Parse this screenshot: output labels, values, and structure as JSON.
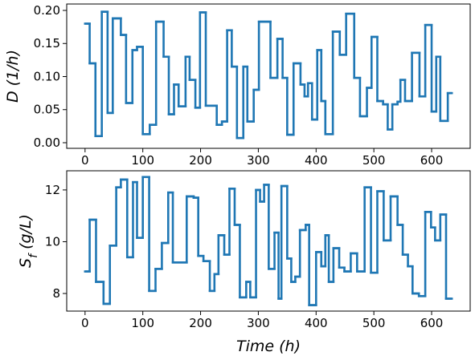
{
  "chart_data": [
    {
      "type": "step",
      "ylabel": "D  (1/h)",
      "color": "#1f77b4",
      "x": [
        0,
        8,
        18,
        29,
        39,
        48,
        62,
        71,
        82,
        90,
        100,
        112,
        123,
        136,
        145,
        154,
        162,
        174,
        181,
        191,
        199,
        209,
        228,
        237,
        246,
        254,
        263,
        274,
        281,
        292,
        301,
        321,
        333,
        342,
        350,
        361,
        373,
        380,
        386,
        393,
        402,
        409,
        416,
        429,
        441,
        452,
        466,
        476,
        488,
        496,
        506,
        516,
        524,
        532,
        541,
        546,
        554,
        566,
        579,
        589,
        600,
        608,
        615,
        628,
        635
      ],
      "values": [
        0.18,
        0.12,
        0.01,
        0.198,
        0.045,
        0.188,
        0.163,
        0.06,
        0.14,
        0.145,
        0.013,
        0.027,
        0.183,
        0.13,
        0.043,
        0.088,
        0.055,
        0.13,
        0.095,
        0.053,
        0.197,
        0.056,
        0.027,
        0.032,
        0.17,
        0.115,
        0.007,
        0.115,
        0.032,
        0.08,
        0.183,
        0.098,
        0.157,
        0.098,
        0.012,
        0.12,
        0.088,
        0.07,
        0.09,
        0.035,
        0.14,
        0.063,
        0.013,
        0.168,
        0.133,
        0.195,
        0.098,
        0.04,
        0.083,
        0.16,
        0.063,
        0.058,
        0.02,
        0.058,
        0.062,
        0.095,
        0.063,
        0.136,
        0.07,
        0.178,
        0.047,
        0.13,
        0.033,
        0.075,
        0.075
      ],
      "xlim": [
        -31.75,
        666.75
      ],
      "xticks": [
        0,
        100,
        200,
        300,
        400,
        500,
        600
      ],
      "ylim": [
        -0.0085,
        0.2097
      ],
      "yticks": [
        {
          "value": 0,
          "label": "0.00"
        },
        {
          "value": 0.05,
          "label": "0.05"
        },
        {
          "value": 0.1,
          "label": "0.10"
        },
        {
          "value": 0.15,
          "label": "0.15"
        },
        {
          "value": 0.2,
          "label": "0.20"
        }
      ]
    },
    {
      "type": "step",
      "ylabel": [
        "S",
        "f",
        "  (g/L)"
      ],
      "xlabel": "Time  (h)",
      "color": "#1f77b4",
      "x": [
        0,
        8,
        19,
        32,
        43,
        54,
        62,
        73,
        83,
        90,
        100,
        111,
        122,
        133,
        144,
        152,
        176,
        188,
        196,
        205,
        216,
        224,
        231,
        241,
        250,
        259,
        268,
        279,
        286,
        296,
        303,
        310,
        318,
        328,
        335,
        340,
        350,
        357,
        364,
        372,
        382,
        388,
        400,
        409,
        416,
        422,
        430,
        440,
        449,
        460,
        471,
        484,
        495,
        506,
        517,
        529,
        541,
        550,
        559,
        567,
        578,
        589,
        599,
        606,
        615,
        625,
        635
      ],
      "values": [
        8.85,
        10.85,
        8.45,
        7.6,
        9.85,
        12.1,
        12.4,
        9.4,
        12.3,
        10.15,
        12.5,
        8.1,
        8.95,
        9.95,
        11.9,
        9.2,
        11.75,
        11.7,
        9.45,
        9.25,
        8.1,
        8.75,
        10.25,
        9.5,
        12.05,
        10.65,
        7.85,
        8.45,
        7.85,
        12.0,
        11.55,
        12.2,
        8.95,
        10.35,
        7.8,
        12.15,
        9.35,
        8.45,
        8.65,
        10.45,
        10.65,
        7.55,
        9.6,
        9.05,
        10.25,
        8.45,
        9.75,
        9.0,
        8.85,
        9.55,
        8.85,
        12.1,
        8.8,
        11.95,
        10.05,
        11.75,
        10.65,
        9.5,
        9.05,
        8.0,
        7.9,
        11.15,
        10.55,
        10.05,
        11.05,
        7.8,
        7.8
      ],
      "xlim": [
        -31.75,
        666.75
      ],
      "xticks": [
        0,
        100,
        200,
        300,
        400,
        500,
        600
      ],
      "ylim": [
        7.32,
        12.74
      ],
      "yticks": [
        8,
        10,
        12
      ]
    }
  ]
}
